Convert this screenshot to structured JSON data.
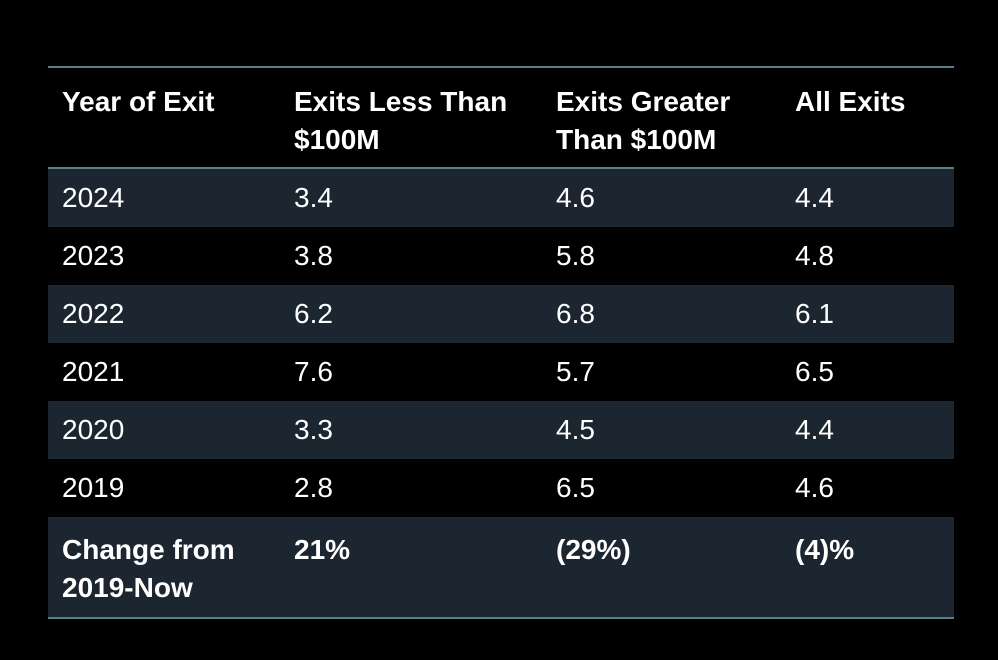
{
  "table": {
    "headers": [
      [
        "Year of Exit",
        ""
      ],
      [
        "Exits Less Than",
        "$100M"
      ],
      [
        "Exits Greater",
        "Than $100M"
      ],
      [
        "All Exits",
        ""
      ]
    ],
    "rows": [
      [
        "2024",
        "3.4",
        "4.6",
        "4.4"
      ],
      [
        "2023",
        "3.8",
        "5.8",
        "4.8"
      ],
      [
        "2022",
        "6.2",
        "6.8",
        "6.1"
      ],
      [
        "2021",
        "7.6",
        "5.7",
        "6.5"
      ],
      [
        "2020",
        "3.3",
        "4.5",
        "4.4"
      ],
      [
        "2019",
        "2.8",
        "6.5",
        "4.6"
      ]
    ],
    "footer": {
      "label": [
        "Change from",
        "2019-Now"
      ],
      "values": [
        "21%",
        "(29%)",
        "(4)%"
      ]
    }
  },
  "colors": {
    "background": "#000000",
    "shaded_row": "#1b2630",
    "rule": "#5b7f8a",
    "text": "#ffffff"
  }
}
